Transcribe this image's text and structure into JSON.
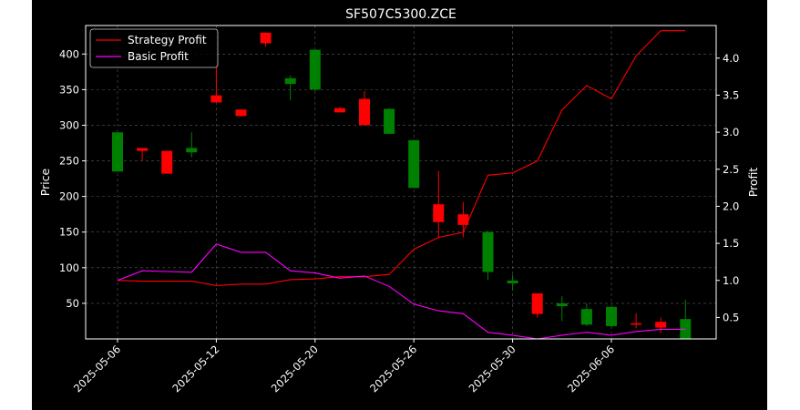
{
  "chart_data": {
    "type": "candlestick+line",
    "title": "SF507C5300.ZCE",
    "ylabel": "Price",
    "y2label": "Profit",
    "ylim": [
      0,
      440
    ],
    "y2lim": [
      0.21,
      4.44
    ],
    "yticks": [
      50,
      100,
      150,
      200,
      250,
      300,
      350,
      400
    ],
    "y2ticks": [
      0.5,
      1.0,
      1.5,
      2.0,
      2.5,
      3.0,
      3.5,
      4.0
    ],
    "y2tick_labels": [
      "0.5",
      "1.0",
      "1.5",
      "2.0",
      "2.5",
      "3.0",
      "3.5",
      "4.0"
    ],
    "xticks": [
      "2025-05-06",
      "2025-05-12",
      "2025-05-20",
      "2025-05-26",
      "2025-05-30",
      "2025-06-06"
    ],
    "xtick_index": [
      0,
      4,
      8,
      12,
      16,
      20
    ],
    "grid": true,
    "legend_position": "top-left",
    "colors": {
      "up": "#008000",
      "down": "#ff0000",
      "strategy": "#ff0000",
      "basic": "#ff00ff",
      "background": "#000000",
      "foreground": "#ffffff"
    },
    "candles": [
      {
        "open": 235,
        "high": 290,
        "low": 235,
        "close": 290
      },
      {
        "open": 268,
        "high": 268,
        "low": 250,
        "close": 264
      },
      {
        "open": 264,
        "high": 264,
        "low": 232,
        "close": 232
      },
      {
        "open": 262,
        "high": 290,
        "low": 255,
        "close": 268
      },
      {
        "open": 342,
        "high": 388,
        "low": 332,
        "close": 332
      },
      {
        "open": 322,
        "high": 322,
        "low": 312,
        "close": 313
      },
      {
        "open": 430,
        "high": 430,
        "low": 410,
        "close": 415
      },
      {
        "open": 358,
        "high": 370,
        "low": 335,
        "close": 366
      },
      {
        "open": 350,
        "high": 406,
        "low": 348,
        "close": 406
      },
      {
        "open": 324,
        "high": 326,
        "low": 318,
        "close": 318
      },
      {
        "open": 337,
        "high": 348,
        "low": 300,
        "close": 300
      },
      {
        "open": 288,
        "high": 324,
        "low": 288,
        "close": 323
      },
      {
        "open": 212,
        "high": 280,
        "low": 212,
        "close": 279
      },
      {
        "open": 189,
        "high": 236,
        "low": 143,
        "close": 164
      },
      {
        "open": 175,
        "high": 192,
        "low": 143,
        "close": 160
      },
      {
        "open": 94,
        "high": 152,
        "low": 83,
        "close": 150
      },
      {
        "open": 78,
        "high": 90,
        "low": 68,
        "close": 82
      },
      {
        "open": 64,
        "high": 64,
        "low": 30,
        "close": 35
      },
      {
        "open": 46,
        "high": 60,
        "low": 25,
        "close": 50
      },
      {
        "open": 20,
        "high": 50,
        "low": 18,
        "close": 42
      },
      {
        "open": 18,
        "high": 45,
        "low": 16,
        "close": 45
      },
      {
        "open": 22,
        "high": 36,
        "low": 15,
        "close": 20
      },
      {
        "open": 24,
        "high": 30,
        "low": 8,
        "close": 16
      },
      {
        "open": 0,
        "high": 55,
        "low": 0,
        "close": 28
      }
    ],
    "series": [
      {
        "name": "Strategy Profit",
        "values": [
          1.0,
          0.99,
          0.99,
          0.99,
          0.93,
          0.95,
          0.95,
          1.01,
          1.02,
          1.05,
          1.05,
          1.08,
          1.42,
          1.58,
          1.65,
          2.42,
          2.45,
          2.61,
          3.3,
          3.63,
          3.45,
          4.03,
          4.37,
          4.37
        ]
      },
      {
        "name": "Basic Profit",
        "values": [
          1.0,
          1.13,
          1.12,
          1.11,
          1.49,
          1.38,
          1.38,
          1.13,
          1.1,
          1.03,
          1.06,
          0.92,
          0.68,
          0.59,
          0.55,
          0.3,
          0.26,
          0.21,
          0.26,
          0.3,
          0.26,
          0.31,
          0.34,
          0.34
        ]
      }
    ]
  }
}
